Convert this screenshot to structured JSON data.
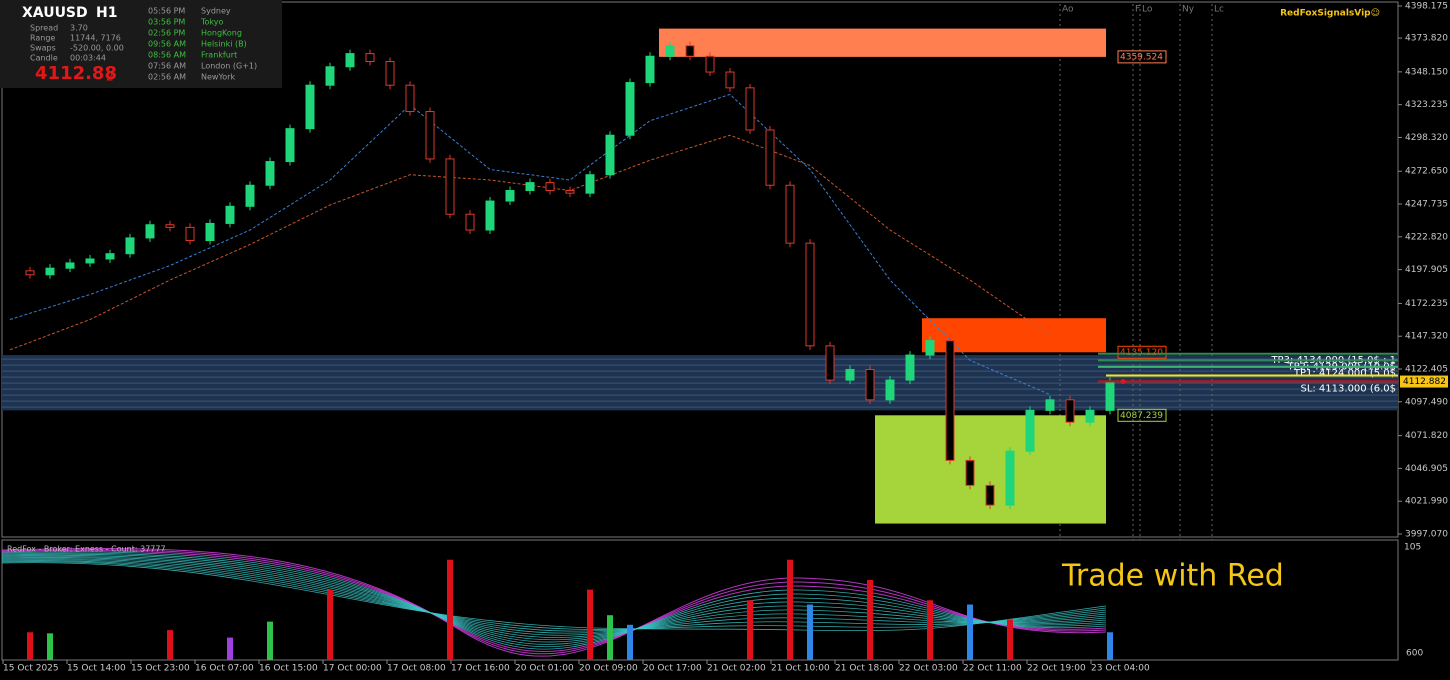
{
  "header": {
    "symbol": "XAUUSD",
    "timeframe": "H1",
    "brand": "RedFoxSignalsVip☺"
  },
  "info": {
    "rows": [
      [
        "Spread",
        "3.70"
      ],
      [
        "Range",
        "11744, 7176"
      ],
      [
        "Swaps",
        "-520.00, 0.00"
      ],
      [
        "Candle",
        "00:03:44"
      ]
    ],
    "price": "4112.88",
    "price_digit": "2"
  },
  "sessions": [
    {
      "time": "05:56 PM",
      "name": "Sydney",
      "active": false
    },
    {
      "time": "03:56 PM",
      "name": "Tokyo",
      "active": true
    },
    {
      "time": "02:56 PM",
      "name": "HongKong",
      "active": true
    },
    {
      "time": "09:56 AM",
      "name": "Helsinki  (B)",
      "active": true
    },
    {
      "time": "08:56 AM",
      "name": "Frankfurt",
      "active": true
    },
    {
      "time": "07:56 AM",
      "name": "London  (G+1)",
      "active": false
    },
    {
      "time": "02:56 AM",
      "name": "NewYork",
      "active": false
    }
  ],
  "chart_data": {
    "type": "candlestick",
    "close": [
      4197,
      4194,
      4199,
      4203,
      4206,
      4210,
      4222,
      4232,
      4230,
      4220,
      4233,
      4246,
      4262,
      4280,
      4305,
      4338,
      4352,
      4362,
      4356,
      4338,
      4318,
      4282,
      4240,
      4228,
      4250,
      4258,
      4264,
      4258,
      4256,
      4270,
      4300,
      4340,
      4360,
      4368,
      4360,
      4348,
      4336,
      4304,
      4262,
      4218,
      4140,
      4114,
      4122,
      4099,
      4114,
      4133,
      4144,
      4053,
      4034,
      4019,
      4060,
      4091,
      4099,
      4082,
      4091,
      4112.88
    ],
    "up_color": "#1fd67a",
    "down_color": "#e0392b",
    "ylim": [
      3997.07,
      4398.175
    ],
    "yticks": [
      {
        "value": 4398.175,
        "label": "4398.175"
      },
      {
        "value": 4373.82,
        "label": "4373.820"
      },
      {
        "value": 4348.15,
        "label": "4348.150"
      },
      {
        "value": 4323.235,
        "label": "4323.235"
      },
      {
        "value": 4298.32,
        "label": "4298.320"
      },
      {
        "value": 4272.65,
        "label": "4272.650"
      },
      {
        "value": 4247.735,
        "label": "4247.735"
      },
      {
        "value": 4222.82,
        "label": "4222.820"
      },
      {
        "value": 4197.905,
        "label": "4197.905"
      },
      {
        "value": 4172.235,
        "label": "4172.235"
      },
      {
        "value": 4147.32,
        "label": "4147.320"
      },
      {
        "value": 4122.405,
        "label": "4122.405"
      },
      {
        "value": 4097.49,
        "label": "4097.490"
      },
      {
        "value": 4071.82,
        "label": "4071.820"
      },
      {
        "value": 4046.905,
        "label": "4046.905"
      },
      {
        "value": 4021.99,
        "label": "4021.990"
      },
      {
        "value": 3997.07,
        "label": "3997.070"
      }
    ],
    "x_labels": [
      "15 Oct 2025",
      "15 Oct 14:00",
      "15 Oct 23:00",
      "16 Oct 07:00",
      "16 Oct 15:00",
      "17 Oct 00:00",
      "17 Oct 08:00",
      "17 Oct 16:00",
      "20 Oct 01:00",
      "20 Oct 09:00",
      "20 Oct 17:00",
      "21 Oct 02:00",
      "21 Oct 10:00",
      "21 Oct 18:00",
      "22 Oct 03:00",
      "22 Oct 11:00",
      "22 Oct 19:00",
      "23 Oct 04:00"
    ],
    "ma": [
      {
        "color": "#3a7fd0",
        "values": [
          4160,
          4179,
          4201,
          4228,
          4266,
          4323,
          4274,
          4266,
          4311,
          4331,
          4274,
          4190,
          4129,
          4103
        ]
      },
      {
        "color": "#c8552a",
        "values": [
          4137,
          4160,
          4190,
          4217,
          4247,
          4270,
          4266,
          4258,
          4281,
          4300,
          4277,
          4228,
          4190,
          4148
        ]
      }
    ],
    "zones": [
      {
        "top": 4381,
        "bottom": 4359.524,
        "color": "#ff7f50",
        "label": {
          "value": 4359.524,
          "label": "4359.524"
        }
      },
      {
        "top": 4161,
        "bottom": 4135.12,
        "color": "#ff4500",
        "label": {
          "value": 4135.12,
          "label": "4135.120"
        }
      },
      {
        "top": 4087.239,
        "bottom": 4005,
        "color": "#a6d53b",
        "label": {
          "value": 4087.239,
          "label": "4087.239"
        }
      }
    ],
    "band": {
      "top": 4133,
      "bottom": 4091,
      "color": "#1e3350"
    },
    "levels": [
      {
        "price": 4134,
        "label": "TP3: 4134.000 (15.0$ : 1",
        "color": "#2e8b57"
      },
      {
        "price": 4129,
        "label": "TP2: 4129.000 (10.0$",
        "color": "#2e8b57"
      },
      {
        "price": 4124,
        "label": "TP1: 4124.000 (5.0$",
        "color": "#3cb371"
      },
      {
        "price": 4113,
        "label": "SL: 4113.000 (6.0$",
        "color": "#d01010"
      }
    ],
    "current_price": {
      "value": 4112.882,
      "label": "4112.882"
    },
    "session_markers": [
      "Ao",
      "F",
      "Lo",
      "Ny",
      "Lc"
    ]
  },
  "indicator": {
    "title": "RedFox - Broker: Exness - Count: 37777",
    "ylim": [
      0,
      105
    ],
    "top_label": "105",
    "bottom_label": "600",
    "caption": "Trade with Red",
    "values": [
      null,
      26,
      25,
      null,
      null,
      null,
      null,
      null,
      28,
      null,
      null,
      21,
      null,
      36,
      null,
      null,
      66,
      null,
      null,
      null,
      null,
      null,
      94,
      null,
      null,
      null,
      null,
      null,
      null,
      66,
      42,
      33,
      null,
      null,
      null,
      null,
      null,
      56,
      null,
      94,
      52,
      null,
      null,
      75,
      null,
      null,
      56,
      null,
      52,
      null,
      38,
      null,
      null,
      null,
      null,
      26
    ],
    "colors": [
      null,
      "#e0101a",
      "#2ec24a",
      null,
      null,
      null,
      null,
      null,
      "#e0101a",
      null,
      null,
      "#a040e0",
      null,
      "#2ec24a",
      null,
      null,
      "#e0101a",
      null,
      null,
      null,
      null,
      null,
      "#e0101a",
      null,
      null,
      null,
      null,
      null,
      null,
      "#e0101a",
      "#2ec24a",
      "#2e86e8",
      null,
      null,
      null,
      null,
      null,
      "#e0101a",
      null,
      "#e0101a",
      "#2e86e8",
      null,
      null,
      "#e0101a",
      null,
      null,
      "#e0101a",
      null,
      "#2e86e8",
      null,
      "#e0101a",
      null,
      null,
      null,
      null,
      "#2e86e8"
    ]
  }
}
